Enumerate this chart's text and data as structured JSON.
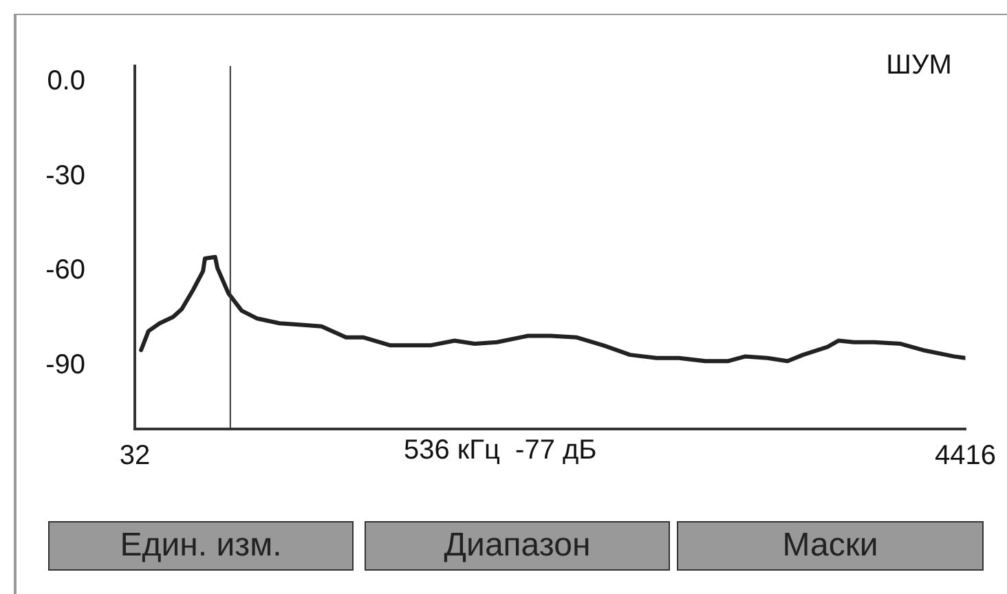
{
  "chart_data": {
    "type": "line",
    "title": "ШУМ",
    "xlim": [
      32,
      4416
    ],
    "xticks": [
      32,
      4416
    ],
    "ylim": [
      -110,
      5
    ],
    "yticks": [
      {
        "value": 0,
        "label": "0.0"
      },
      -30,
      -60,
      -90
    ],
    "grid": false,
    "legend": false,
    "marker": "none",
    "line_style": "solid",
    "series": [
      {
        "color": "#222222",
        "x": [
          65,
          104,
          163,
          234,
          280,
          339,
          392,
          402,
          456,
          468,
          526,
          596,
          678,
          796,
          912,
          1018,
          1147,
          1240,
          1381,
          1592,
          1720,
          1826,
          1943,
          2107,
          2226,
          2365,
          2505,
          2646,
          2786,
          2904,
          3044,
          3161,
          3255,
          3371,
          3477,
          3559,
          3688,
          3747,
          3828,
          3934,
          4074,
          4192,
          4355,
          4416
        ],
        "values": [
          -85,
          -79,
          -76.5,
          -74.5,
          -72,
          -66,
          -60,
          -56,
          -55.5,
          -59,
          -67,
          -72.5,
          -75,
          -76.5,
          -77,
          -77.5,
          -81,
          -81,
          -83.5,
          -83.5,
          -82,
          -83,
          -82.5,
          -80.5,
          -80.5,
          -81,
          -83.5,
          -86.5,
          -87.5,
          -87.5,
          -88.5,
          -88.5,
          -87,
          -87.5,
          -88.5,
          -86.5,
          -84,
          -82,
          -82.5,
          -82.5,
          -83,
          -85,
          -87,
          -87.5
        ]
      }
    ],
    "ref_lines": [
      {
        "axis": "x",
        "value": 536,
        "label": "536 кГц  -77 дБ",
        "color": "#333333"
      }
    ],
    "annotations": [
      "Един. изм.",
      "Диапазон",
      "Маски"
    ]
  }
}
